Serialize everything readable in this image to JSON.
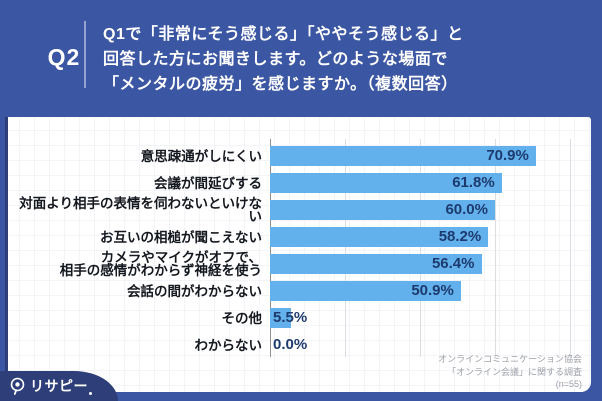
{
  "header": {
    "question_number": "Q2",
    "question_lines": [
      "Q1で「非常にそう感じる」「ややそう感じる」と",
      "回答した方にお聞きします。どのような場面で",
      "「メンタルの疲労」を感じますか。（複数回答）"
    ]
  },
  "chart_data": {
    "type": "bar",
    "orientation": "horizontal",
    "categories": [
      "意思疎通がしにくい",
      "会議が間延びする",
      "対面より相手の表情を伺わないといけない",
      "お互いの相槌が聞こえない",
      "カメラやマイクがオフで、\n相手の感情がわからず神経を使う",
      "会話の間がわからない",
      "その他",
      "わからない"
    ],
    "values": [
      70.9,
      61.8,
      60.0,
      58.2,
      56.4,
      50.9,
      5.5,
      0.0
    ],
    "value_labels": [
      "70.9%",
      "61.8%",
      "60.0%",
      "58.2%",
      "56.4%",
      "50.9%",
      "5.5%",
      "0.0%"
    ],
    "xlim": [
      0,
      80
    ],
    "gridlines_pct": [
      20,
      40,
      60,
      80
    ],
    "grid": true,
    "legend": false,
    "bar_color": "#63B1EC",
    "value_label_color": "#1D3A6E"
  },
  "source": {
    "lines": [
      "オンラインコミュニケーション協会",
      "「オンライン会議」に関する調査",
      "(n=55)"
    ]
  },
  "logo": {
    "brand": "リサピー",
    "icon": "magnifier-pin-icon"
  },
  "colors": {
    "background": "#3B56A2",
    "panel": "#FFFFFF",
    "badge": "#2D3E79",
    "divider": "#94A3CF"
  }
}
